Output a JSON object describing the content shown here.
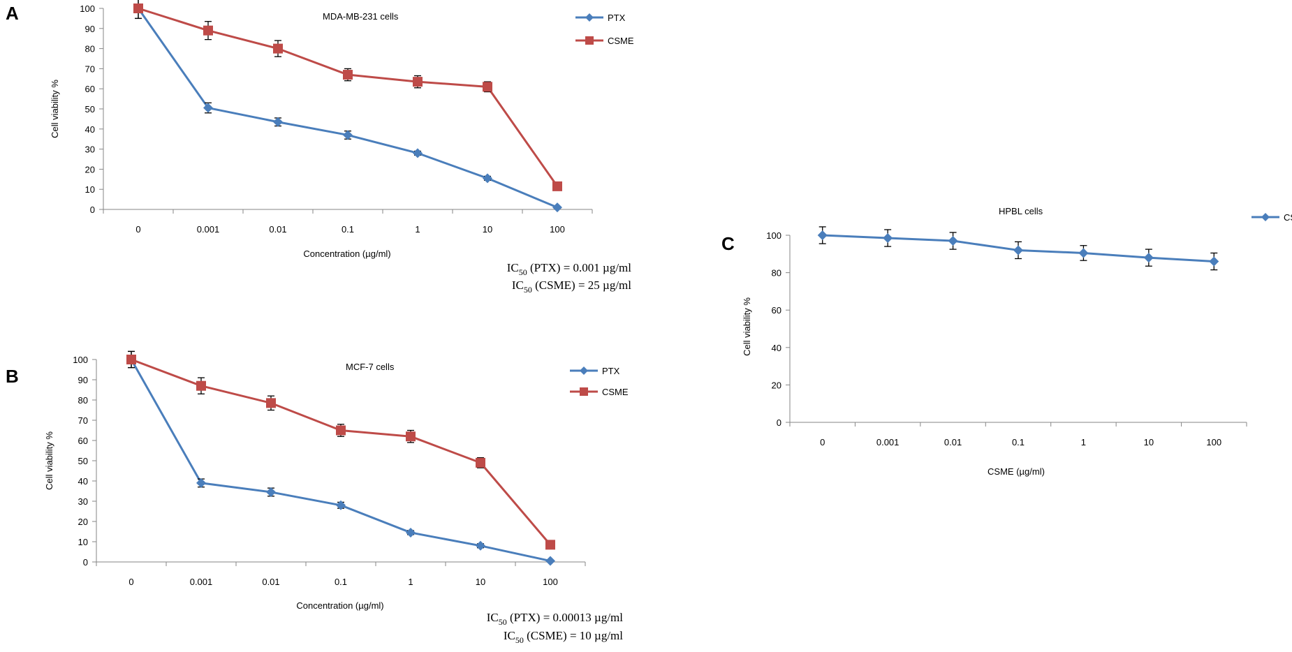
{
  "colors": {
    "ptx": "#4a7ebb",
    "csme": "#be4b48",
    "axis": "#868686",
    "text": "#000000"
  },
  "chart_data": [
    {
      "panel": "A",
      "type": "line",
      "title": "MDA-MB-231 cells",
      "xlabel": "Concentration (µg/ml)",
      "ylabel": "Cell viability %",
      "categories": [
        "0",
        "0.001",
        "0.01",
        "0.1",
        "1",
        "10",
        "100"
      ],
      "yticks": [
        0,
        10,
        20,
        30,
        40,
        50,
        60,
        70,
        80,
        90,
        100
      ],
      "ylim": [
        0,
        100
      ],
      "legend_position": "top-right",
      "series": [
        {
          "name": "PTX",
          "marker": "diamond",
          "color": "#4a7ebb",
          "values": [
            100,
            50.5,
            43.5,
            37,
            28,
            15.5,
            1
          ],
          "errors": [
            5,
            2.5,
            2,
            2,
            1,
            1,
            0.5
          ]
        },
        {
          "name": "CSME",
          "marker": "square",
          "color": "#be4b48",
          "values": [
            100,
            89,
            80,
            67,
            63.5,
            61,
            11.5
          ],
          "errors": [
            5,
            4.5,
            4,
            3,
            3,
            2.5,
            1
          ]
        }
      ],
      "annotations": [
        {
          "prefix": "IC",
          "sub": "50",
          "suffix": " (PTX) = 0.001 µg/ml"
        },
        {
          "prefix": "IC",
          "sub": "50",
          "suffix": " (CSME) = 25 µg/ml"
        }
      ]
    },
    {
      "panel": "B",
      "type": "line",
      "title": "MCF-7 cells",
      "xlabel": "Concentration (µg/ml)",
      "ylabel": "Cell viability %",
      "categories": [
        "0",
        "0.001",
        "0.01",
        "0.1",
        "1",
        "10",
        "100"
      ],
      "yticks": [
        0,
        10,
        20,
        30,
        40,
        50,
        60,
        70,
        80,
        90,
        100
      ],
      "ylim": [
        0,
        100
      ],
      "legend_position": "top-right",
      "series": [
        {
          "name": "PTX",
          "marker": "diamond",
          "color": "#4a7ebb",
          "values": [
            100,
            39,
            34.5,
            28,
            14.5,
            8,
            0.5
          ],
          "errors": [
            4,
            2,
            2,
            1.5,
            1,
            1,
            0.5
          ]
        },
        {
          "name": "CSME",
          "marker": "square",
          "color": "#be4b48",
          "values": [
            100,
            87,
            78.5,
            65,
            62,
            49,
            8.5
          ],
          "errors": [
            4,
            4,
            3.5,
            3,
            3,
            2.5,
            1
          ]
        }
      ],
      "annotations": [
        {
          "prefix": "IC",
          "sub": "50",
          "suffix": " (PTX) = 0.00013 µg/ml"
        },
        {
          "prefix": "IC",
          "sub": "50",
          "suffix": " (CSME) = 10 µg/ml"
        }
      ]
    },
    {
      "panel": "C",
      "type": "line",
      "title": "HPBL cells",
      "xlabel": "CSME (µg/ml)",
      "ylabel": "Cell viability %",
      "categories": [
        "0",
        "0.001",
        "0.01",
        "0.1",
        "1",
        "10",
        "100"
      ],
      "yticks": [
        0,
        20,
        40,
        60,
        80,
        100
      ],
      "ylim": [
        0,
        100
      ],
      "legend_position": "top-right",
      "series": [
        {
          "name": "CSME",
          "marker": "diamond",
          "color": "#4a7ebb",
          "values": [
            100,
            98.5,
            97,
            92,
            90.5,
            88,
            86
          ],
          "errors": [
            4.5,
            4.5,
            4.5,
            4.5,
            4,
            4.5,
            4.5
          ]
        }
      ],
      "annotations": []
    }
  ]
}
